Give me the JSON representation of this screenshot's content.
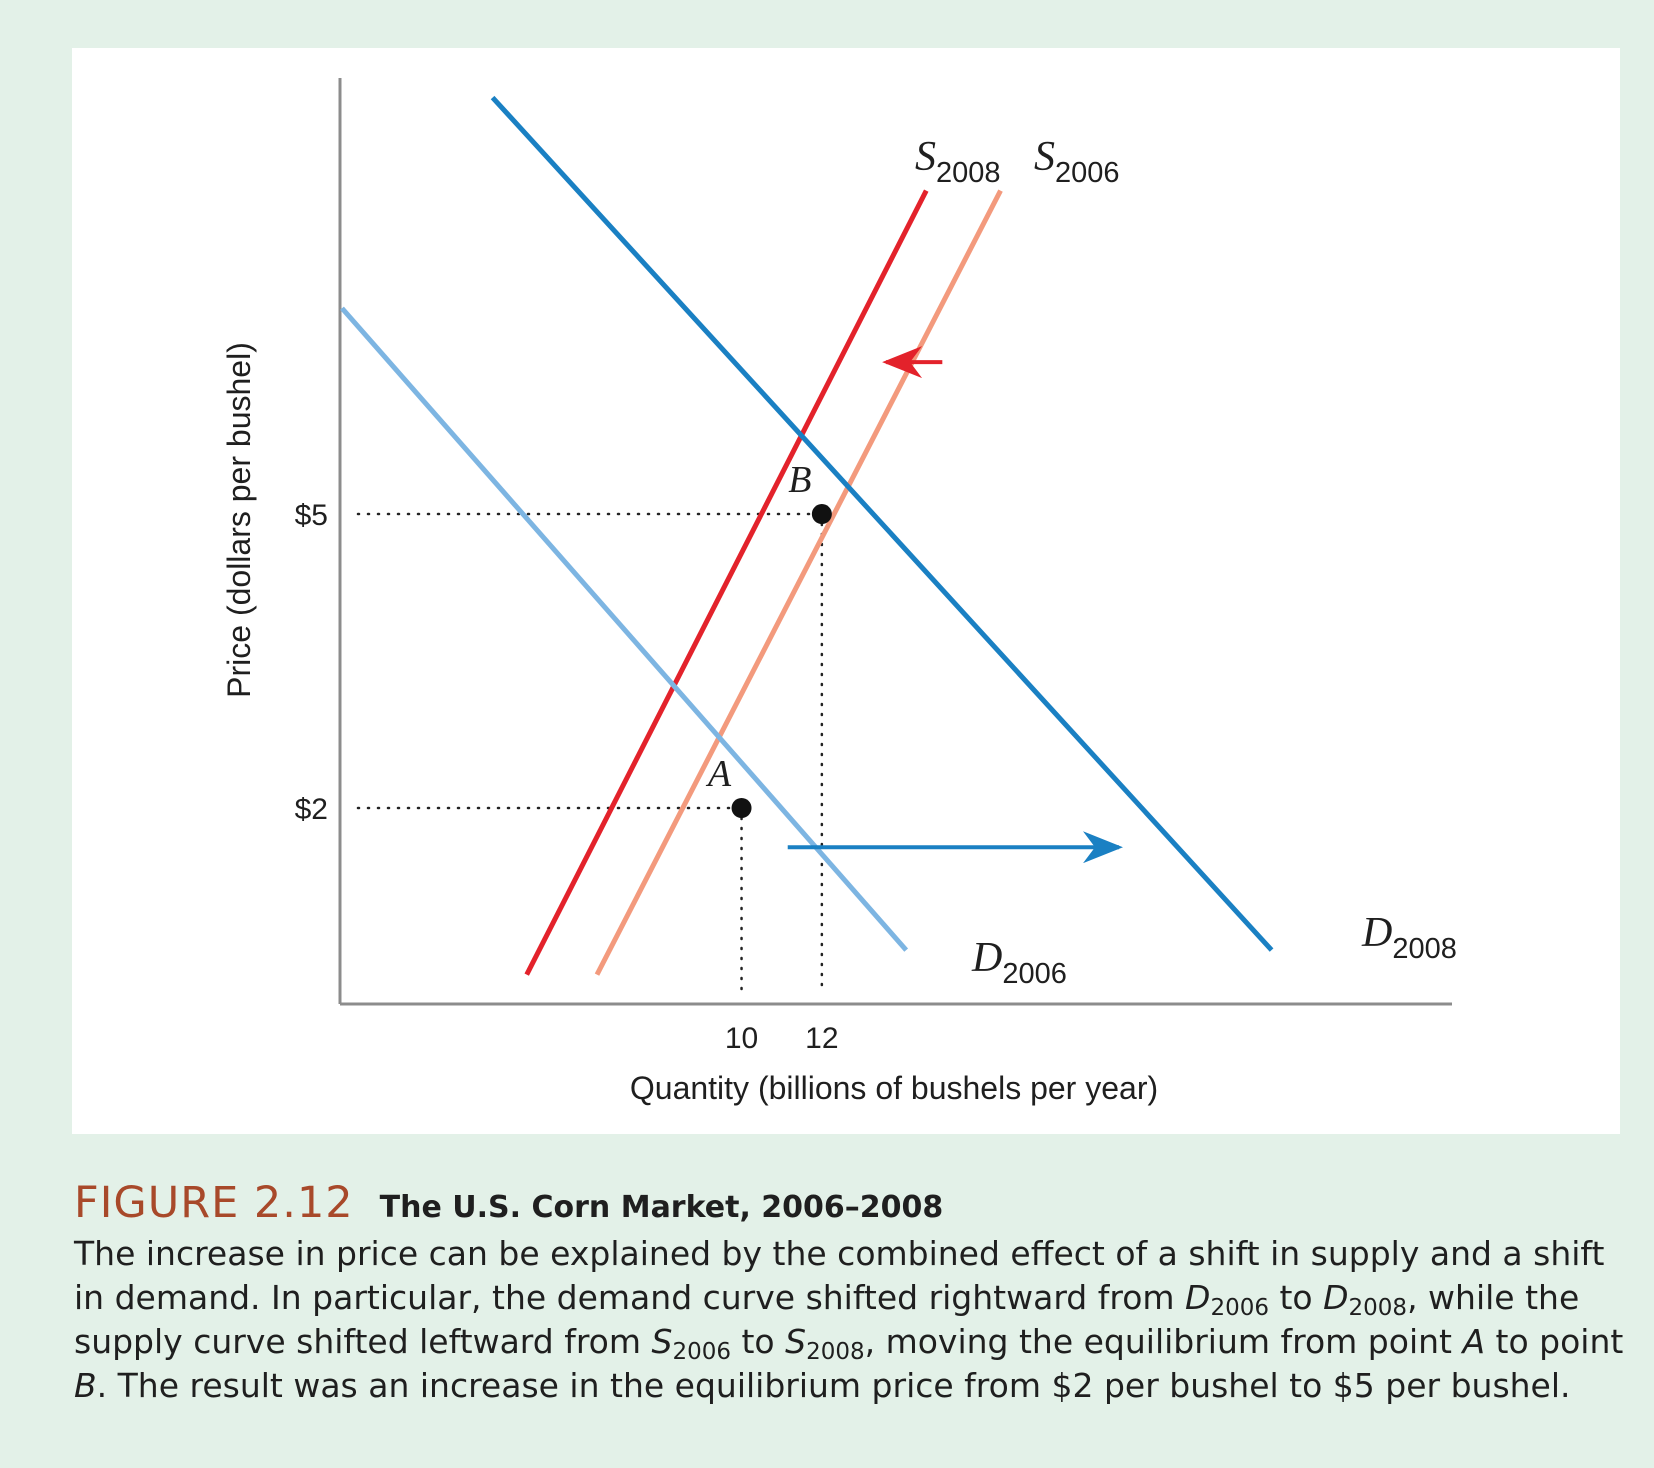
{
  "chart_data": {
    "type": "line",
    "title": "",
    "xlabel": "Quantity (billions of bushels per year)",
    "ylabel": "Price (dollars per bushel)",
    "xlim": [
      0,
      25.9
    ],
    "ylim": [
      0,
      9.49
    ],
    "x_ticks": [
      {
        "value": 10,
        "label": "10"
      },
      {
        "value": 12,
        "label": "12"
      }
    ],
    "y_ticks": [
      {
        "value": 2,
        "label": "$2"
      },
      {
        "value": 5,
        "label": "$5"
      }
    ],
    "grid": false,
    "series": [
      {
        "id": "s2008",
        "name": "S",
        "sub": "2008",
        "color": "#e3222b",
        "x": [
          4.65,
          14.6
        ],
        "y": [
          0.3,
          8.3
        ]
      },
      {
        "id": "s2006",
        "name": "S",
        "sub": "2006",
        "color": "#f39a7d",
        "x": [
          6.4,
          16.45
        ],
        "y": [
          0.3,
          8.3
        ]
      },
      {
        "id": "d2006",
        "name": "D",
        "sub": "2006",
        "color": "#7db5e2",
        "x": [
          0.05,
          14.1
        ],
        "y": [
          7.1,
          0.55
        ]
      },
      {
        "id": "d2008",
        "name": "D",
        "sub": "2008",
        "color": "#1a80c3",
        "x": [
          3.8,
          23.2
        ],
        "y": [
          9.25,
          0.55
        ]
      }
    ],
    "points": [
      {
        "label": "A",
        "x": 10,
        "y": 2
      },
      {
        "label": "B",
        "x": 12,
        "y": 5
      }
    ],
    "arrows": [
      {
        "id": "demand-shift",
        "color": "#1a80c3",
        "x1": 11.15,
        "y1": 1.6,
        "x2": 19.4,
        "y2": 1.6
      },
      {
        "id": "supply-shift",
        "color": "#e3222b",
        "x1": 15.0,
        "y1": 6.55,
        "x2": 13.6,
        "y2": 6.55
      }
    ]
  },
  "caption": {
    "figure_number": "FIGURE 2.12",
    "title": "The U.S. Corn Market, 2006–2008",
    "t1": "The increase in price can be explained by the combined effect of a shift in supply and a shift in demand. In particular, the demand curve shifted rightward from ",
    "d": "D",
    "y2006": "2006",
    "to": " to ",
    "y2008": "2008",
    "t2": ", while the supply curve shifted leftward from ",
    "s": "S",
    "t3": ", moving the equilibrium from point ",
    "a": "A",
    "t4": " to point ",
    "b": "B",
    "t5": ". The result was an increase in the equilibrium price from $2 per bushel to $5 per bushel."
  }
}
